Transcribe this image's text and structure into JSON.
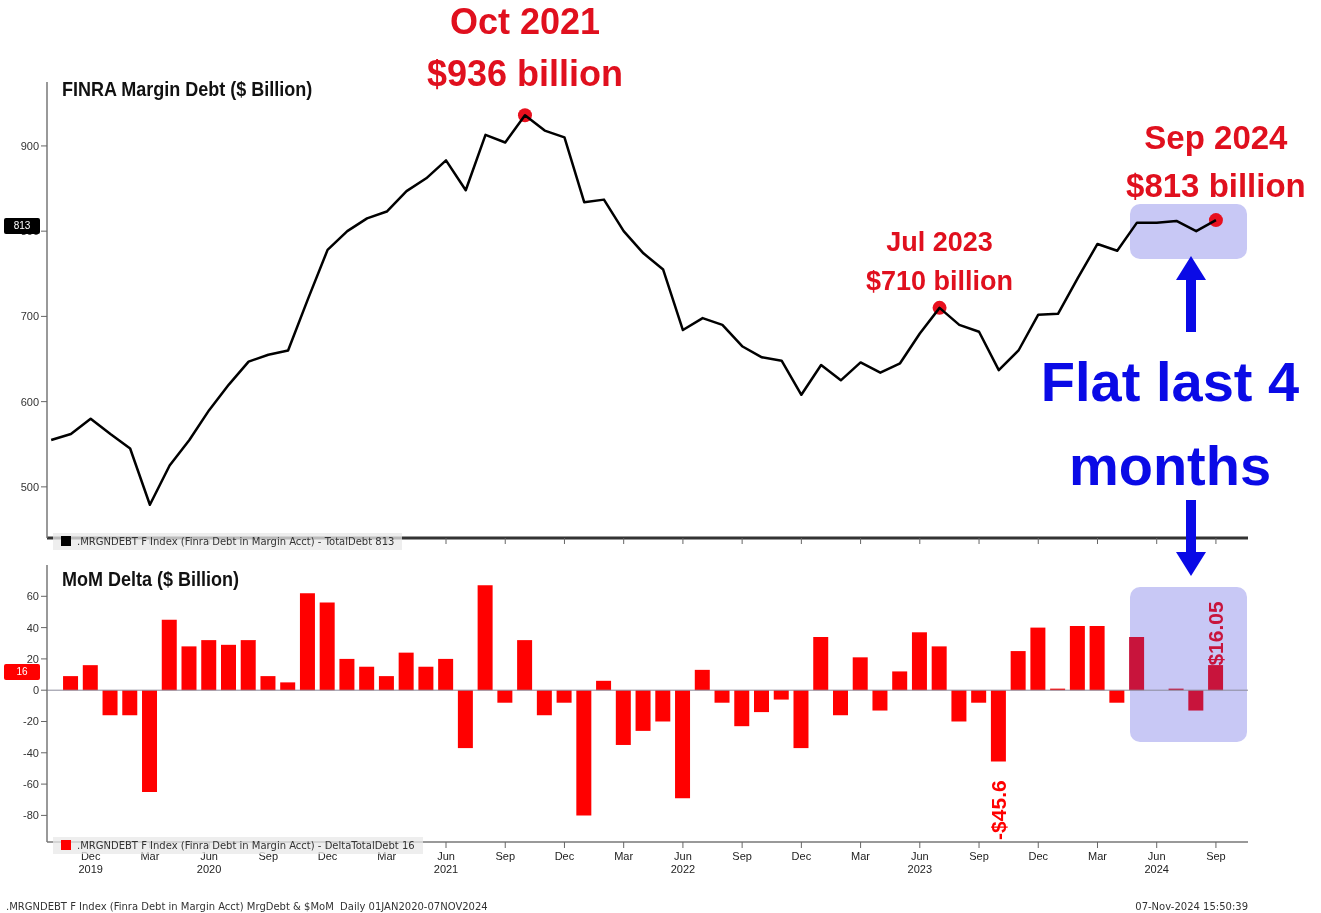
{
  "chart_data": [
    {
      "type": "line",
      "title": "FINRA Margin Debt ($ Billion)",
      "x": [
        "2019-10",
        "2019-11",
        "2019-12",
        "2020-01",
        "2020-02",
        "2020-03",
        "2020-04",
        "2020-05",
        "2020-06",
        "2020-07",
        "2020-08",
        "2020-09",
        "2020-10",
        "2020-11",
        "2020-12",
        "2021-01",
        "2021-02",
        "2021-03",
        "2021-04",
        "2021-05",
        "2021-06",
        "2021-07",
        "2021-08",
        "2021-09",
        "2021-10",
        "2021-11",
        "2021-12",
        "2022-01",
        "2022-02",
        "2022-03",
        "2022-04",
        "2022-05",
        "2022-06",
        "2022-07",
        "2022-08",
        "2022-09",
        "2022-10",
        "2022-11",
        "2022-12",
        "2023-01",
        "2023-02",
        "2023-03",
        "2023-04",
        "2023-05",
        "2023-06",
        "2023-07",
        "2023-08",
        "2023-09",
        "2023-10",
        "2023-11",
        "2023-12",
        "2024-01",
        "2024-02",
        "2024-03",
        "2024-04",
        "2024-05",
        "2024-06",
        "2024-07",
        "2024-08",
        "2024-09"
      ],
      "xlim": [
        "2019-09-25",
        "2024-10-20"
      ],
      "xticks": [
        {
          "value": "2019-12",
          "label": null
        },
        {
          "value": "2020-03",
          "label": null
        },
        {
          "value": "2020-06",
          "label": null
        },
        {
          "value": "2020-09",
          "label": null
        },
        {
          "value": "2020-12",
          "label": null
        },
        {
          "value": "2021-03",
          "label": null
        },
        {
          "value": "2021-06",
          "label": null
        },
        {
          "value": "2021-09",
          "label": null
        },
        {
          "value": "2021-12",
          "label": null
        },
        {
          "value": "2022-03",
          "label": null
        },
        {
          "value": "2022-06",
          "label": null
        },
        {
          "value": "2022-09",
          "label": null
        },
        {
          "value": "2022-12",
          "label": null
        },
        {
          "value": "2023-03",
          "label": null
        },
        {
          "value": "2023-06",
          "label": null
        },
        {
          "value": "2023-09",
          "label": null
        },
        {
          "value": "2023-12",
          "label": null
        },
        {
          "value": "2024-03",
          "label": null
        },
        {
          "value": "2024-06",
          "label": null
        },
        {
          "value": "2024-09",
          "label": null
        }
      ],
      "tick_labels": "y",
      "ylim": [
        440,
        975
      ],
      "yticks": [
        500,
        600,
        700,
        800,
        900
      ],
      "series": [
        {
          "name": ".MRGNDEBT F Index (Finra Debt in Margin Acct) - TotalDebt 813",
          "color": "#000000",
          "values": [
            555,
            562,
            580,
            562,
            545,
            479,
            525,
            555,
            590,
            620,
            647,
            655,
            660,
            720,
            778,
            800,
            815,
            823,
            847,
            862,
            883,
            848,
            913,
            904,
            936,
            918,
            910,
            834,
            837,
            800,
            774,
            755,
            684,
            698,
            690,
            665,
            652,
            648,
            608,
            643,
            625,
            646,
            634,
            645,
            680,
            710,
            690,
            682,
            637,
            660,
            702,
            703,
            745,
            785,
            777,
            810,
            810,
            812,
            800,
            813
          ]
        },
        {
          "type": "scatter",
          "color": "#e8101e",
          "x": [
            "2021-10",
            "2023-07",
            "2024-09"
          ],
          "values": [
            936,
            710,
            813
          ]
        }
      ],
      "legend": "bottom left",
      "bands": [
        {
          "axis": "x",
          "from": "2024-04-20",
          "to": "2024-10-18",
          "color": "#c8c8f5"
        }
      ],
      "annotations": [
        {
          "text": "Oct 2021\n$936 billion",
          "x": "2021-10",
          "y": 936
        },
        {
          "text": "Jul 2023\n$710 billion",
          "x": "2023-07",
          "y": 710
        },
        {
          "text": "Sep 2024\n$813 billion",
          "x": "2024-09",
          "y": 813
        },
        "813",
        "Flat last 4 months"
      ]
    },
    {
      "type": "bar",
      "title": "MoM Delta ($ Billion)",
      "x": [
        "2019-10",
        "2019-11",
        "2019-12",
        "2020-01",
        "2020-02",
        "2020-03",
        "2020-04",
        "2020-05",
        "2020-06",
        "2020-07",
        "2020-08",
        "2020-09",
        "2020-10",
        "2020-11",
        "2020-12",
        "2021-01",
        "2021-02",
        "2021-03",
        "2021-04",
        "2021-05",
        "2021-06",
        "2021-07",
        "2021-08",
        "2021-09",
        "2021-10",
        "2021-11",
        "2021-12",
        "2022-01",
        "2022-02",
        "2022-03",
        "2022-04",
        "2022-05",
        "2022-06",
        "2022-07",
        "2022-08",
        "2022-09",
        "2022-10",
        "2022-11",
        "2022-12",
        "2023-01",
        "2023-02",
        "2023-03",
        "2023-04",
        "2023-05",
        "2023-06",
        "2023-07",
        "2023-08",
        "2023-09",
        "2023-10",
        "2023-11",
        "2023-12",
        "2024-01",
        "2024-02",
        "2024-03",
        "2024-04",
        "2024-05",
        "2024-06",
        "2024-07",
        "2024-08",
        "2024-09"
      ],
      "xlim": [
        "2019-09-25",
        "2024-10-20"
      ],
      "xticks": [
        {
          "value": "2019-12",
          "label": "Dec\n2019"
        },
        {
          "value": "2020-03",
          "label": "Mar"
        },
        {
          "value": "2020-06",
          "label": "Jun\n2020"
        },
        {
          "value": "2020-09",
          "label": "Sep"
        },
        {
          "value": "2020-12",
          "label": "Dec"
        },
        {
          "value": "2021-03",
          "label": "Mar"
        },
        {
          "value": "2021-06",
          "label": "Jun\n2021"
        },
        {
          "value": "2021-09",
          "label": "Sep"
        },
        {
          "value": "2021-12",
          "label": "Dec"
        },
        {
          "value": "2022-03",
          "label": "Mar"
        },
        {
          "value": "2022-06",
          "label": "Jun\n2022"
        },
        {
          "value": "2022-09",
          "label": "Sep"
        },
        {
          "value": "2022-12",
          "label": "Dec"
        },
        {
          "value": "2023-03",
          "label": "Mar"
        },
        {
          "value": "2023-06",
          "label": "Jun\n2023"
        },
        {
          "value": "2023-09",
          "label": "Sep"
        },
        {
          "value": "2023-12",
          "label": "Dec"
        },
        {
          "value": "2024-03",
          "label": "Mar"
        },
        {
          "value": "2024-06",
          "label": "Jun\n2024"
        },
        {
          "value": "2024-09",
          "label": "Sep"
        }
      ],
      "ylim": [
        -97,
        80
      ],
      "yticks": [
        -80,
        -60,
        -40,
        -20,
        0,
        20,
        40,
        60
      ],
      "series": [
        {
          "name": ".MRGNDEBT F Index (Finra Debt in Margin Acct) - DeltaTotalDebt 16",
          "colors": [
            "#ff0000",
            "#ff0000",
            "#ff0000",
            "#ff0000",
            "#ff0000",
            "#ff0000",
            "#ff0000",
            "#ff0000",
            "#ff0000",
            "#ff0000",
            "#ff0000",
            "#ff0000",
            "#ff0000",
            "#ff0000",
            "#ff0000",
            "#ff0000",
            "#ff0000",
            "#ff0000",
            "#ff0000",
            "#ff0000",
            "#ff0000",
            "#ff0000",
            "#ff0000",
            "#ff0000",
            "#ff0000",
            "#ff0000",
            "#ff0000",
            "#ff0000",
            "#ff0000",
            "#ff0000",
            "#ff0000",
            "#ff0000",
            "#ff0000",
            "#ff0000",
            "#ff0000",
            "#ff0000",
            "#ff0000",
            "#ff0000",
            "#ff0000",
            "#ff0000",
            "#ff0000",
            "#ff0000",
            "#ff0000",
            "#ff0000",
            "#ff0000",
            "#ff0000",
            "#ff0000",
            "#ff0000",
            "#ff0000",
            "#ff0000",
            "#ff0000",
            "#ff0000",
            "#ff0000",
            "#ff0000",
            "#ff0000",
            "#c8143c",
            "#c8143c",
            "#c8143c",
            "#c8143c",
            "#c8143c"
          ],
          "values": [
            0,
            9,
            16,
            -16,
            -16,
            -65,
            45,
            28,
            32,
            29,
            32,
            9,
            5,
            62,
            56,
            20,
            15,
            9,
            24,
            15,
            20,
            -37,
            67,
            -8,
            32,
            -16,
            -8,
            -80,
            6,
            -35,
            -26,
            -20,
            -69,
            13,
            -8,
            -23,
            -14,
            -6,
            -37,
            34,
            -16,
            21,
            -13,
            12,
            37,
            28,
            -20,
            -8,
            -45.6,
            25,
            40,
            1,
            41,
            41,
            -8,
            34,
            0,
            1,
            -13,
            16.05
          ],
          "value_labels": [
            null,
            null,
            null,
            null,
            null,
            null,
            null,
            null,
            null,
            null,
            null,
            null,
            null,
            null,
            null,
            null,
            null,
            null,
            null,
            null,
            null,
            null,
            null,
            null,
            null,
            null,
            null,
            null,
            null,
            null,
            null,
            null,
            null,
            null,
            null,
            null,
            null,
            null,
            null,
            null,
            null,
            null,
            null,
            null,
            null,
            null,
            null,
            null,
            "-$45.6",
            null,
            null,
            null,
            null,
            null,
            null,
            null,
            null,
            null,
            null,
            "$16.05"
          ]
        }
      ],
      "legend": "bottom left",
      "ref_lines": [
        {
          "axis": "y",
          "value": 0,
          "color": "#8a8a9a"
        }
      ],
      "bands": [
        {
          "axis": "x",
          "from": "2024-04-20",
          "to": "2024-10-18",
          "color": "#c8c8f5"
        }
      ],
      "annotations": [
        "16",
        ".MRGNDEBT F Index (Finra Debt in Margin Acct) MrgDebt & $MoM  Daily 01JAN2020-07NOV2024",
        "07-Nov-2024 15:50:39"
      ]
    }
  ]
}
